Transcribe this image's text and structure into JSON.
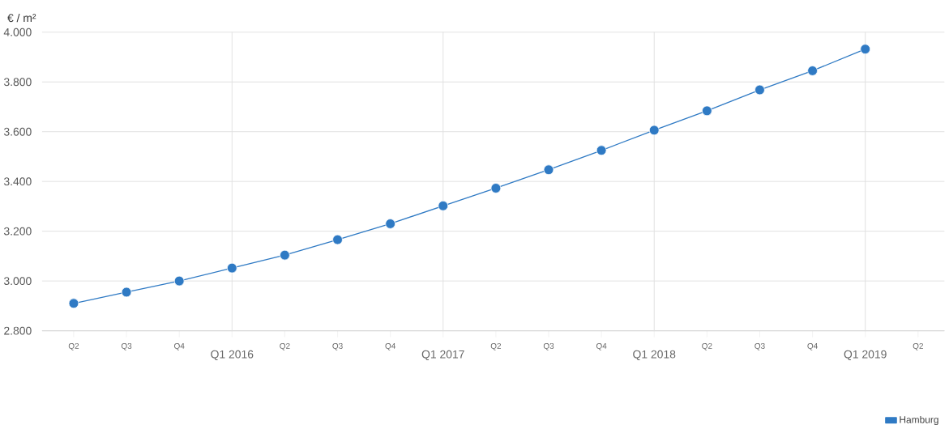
{
  "chart_data": {
    "type": "line",
    "ylabel": "€ / m²",
    "categories": [
      "Q2",
      "Q3",
      "Q4",
      "Q1 2016",
      "Q2",
      "Q3",
      "Q4",
      "Q1 2017",
      "Q2",
      "Q3",
      "Q4",
      "Q1 2018",
      "Q2",
      "Q3",
      "Q4",
      "Q1 2019",
      "Q2"
    ],
    "series": [
      {
        "name": "Hamburg",
        "color": "#2f7ac4",
        "values": [
          2910,
          2955,
          3000,
          3052,
          3104,
          3166,
          3230,
          3302,
          3373,
          3447,
          3525,
          3606,
          3684,
          3768,
          3845,
          3932,
          null
        ]
      }
    ],
    "ylim": [
      2800,
      4000
    ],
    "yticks": [
      {
        "value": 2800,
        "label": "2.800"
      },
      {
        "value": 3000,
        "label": "3.000"
      },
      {
        "value": 3200,
        "label": "3.200"
      },
      {
        "value": 3400,
        "label": "3.400"
      },
      {
        "value": 3600,
        "label": "3.600"
      },
      {
        "value": 3800,
        "label": "3.800"
      },
      {
        "value": 4000,
        "label": "4.000"
      }
    ],
    "grid": true,
    "legend": "bottom right",
    "marker": "circle",
    "line_style": "solid"
  }
}
